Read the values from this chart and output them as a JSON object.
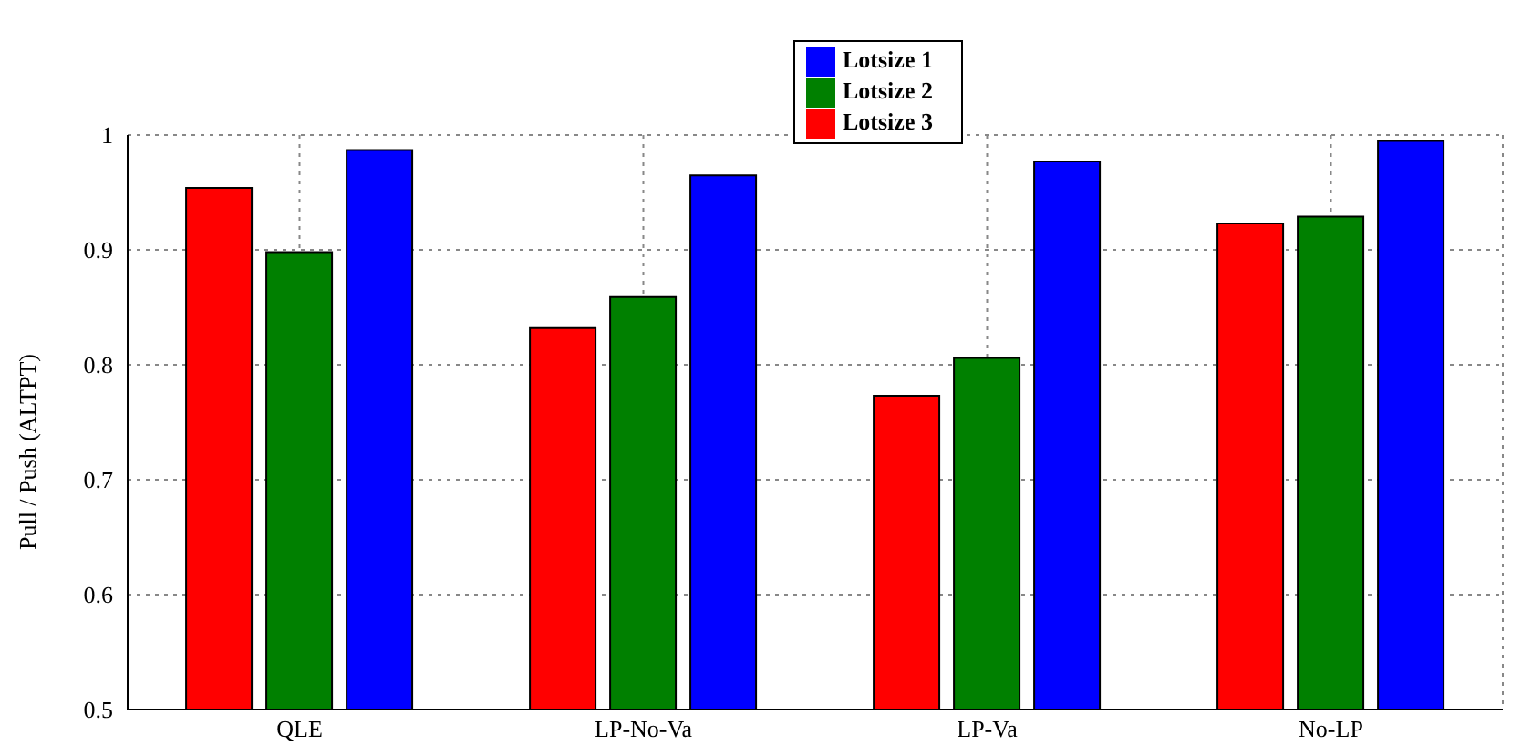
{
  "chart_data": {
    "type": "bar",
    "ylabel": "Pull / Push (ALTPT)",
    "categories": [
      "QLE",
      "LP-No-Va",
      "LP-Va",
      "No-LP"
    ],
    "series": [
      {
        "name": "Lotsize 3",
        "color": "#ff0000",
        "values": [
          0.954,
          0.832,
          0.773,
          0.923
        ]
      },
      {
        "name": "Lotsize 2",
        "color": "#008000",
        "values": [
          0.898,
          0.859,
          0.806,
          0.929
        ]
      },
      {
        "name": "Lotsize 1",
        "color": "#0000ff",
        "values": [
          0.987,
          0.965,
          0.977,
          0.995
        ]
      }
    ],
    "ylim": [
      0.5,
      1
    ],
    "yticks": [
      0.5,
      0.6,
      0.7,
      0.8,
      0.9,
      1
    ],
    "grid": true,
    "legend": "top"
  }
}
